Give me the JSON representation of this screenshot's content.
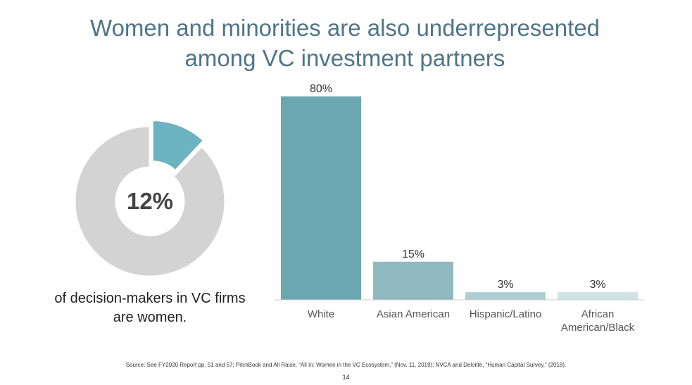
{
  "title": "Women and minorities are also underrepresented among VC investment partners",
  "source": "Source: See FY2020 Report pp. 51 and 57; PitchBook and All Raise, “All In: Women in the VC Ecosystem,” (Nov. 11, 2019); NVCA and Deloitte, “Human Capital Survey,” (2018).",
  "page_number": "14",
  "chart_data": [
    {
      "type": "donut",
      "values": [
        12,
        88
      ],
      "value_labels": [
        "12%",
        null
      ],
      "colors": [
        "#6cb3c2",
        "#d3d3d3"
      ],
      "caption": "of decision-makers in VC firms are women."
    },
    {
      "type": "bar",
      "categories": [
        "White",
        "Asian American",
        "Hispanic/Latino",
        "African American/Black"
      ],
      "values": [
        80,
        15,
        3,
        3
      ],
      "value_labels": [
        "80%",
        "15%",
        "3%",
        "3%"
      ],
      "colors": [
        "#6aa7b1",
        "#8fb9bf",
        "#aecfd1",
        "#cfe3e3"
      ],
      "ylim": [
        0,
        80
      ]
    }
  ]
}
